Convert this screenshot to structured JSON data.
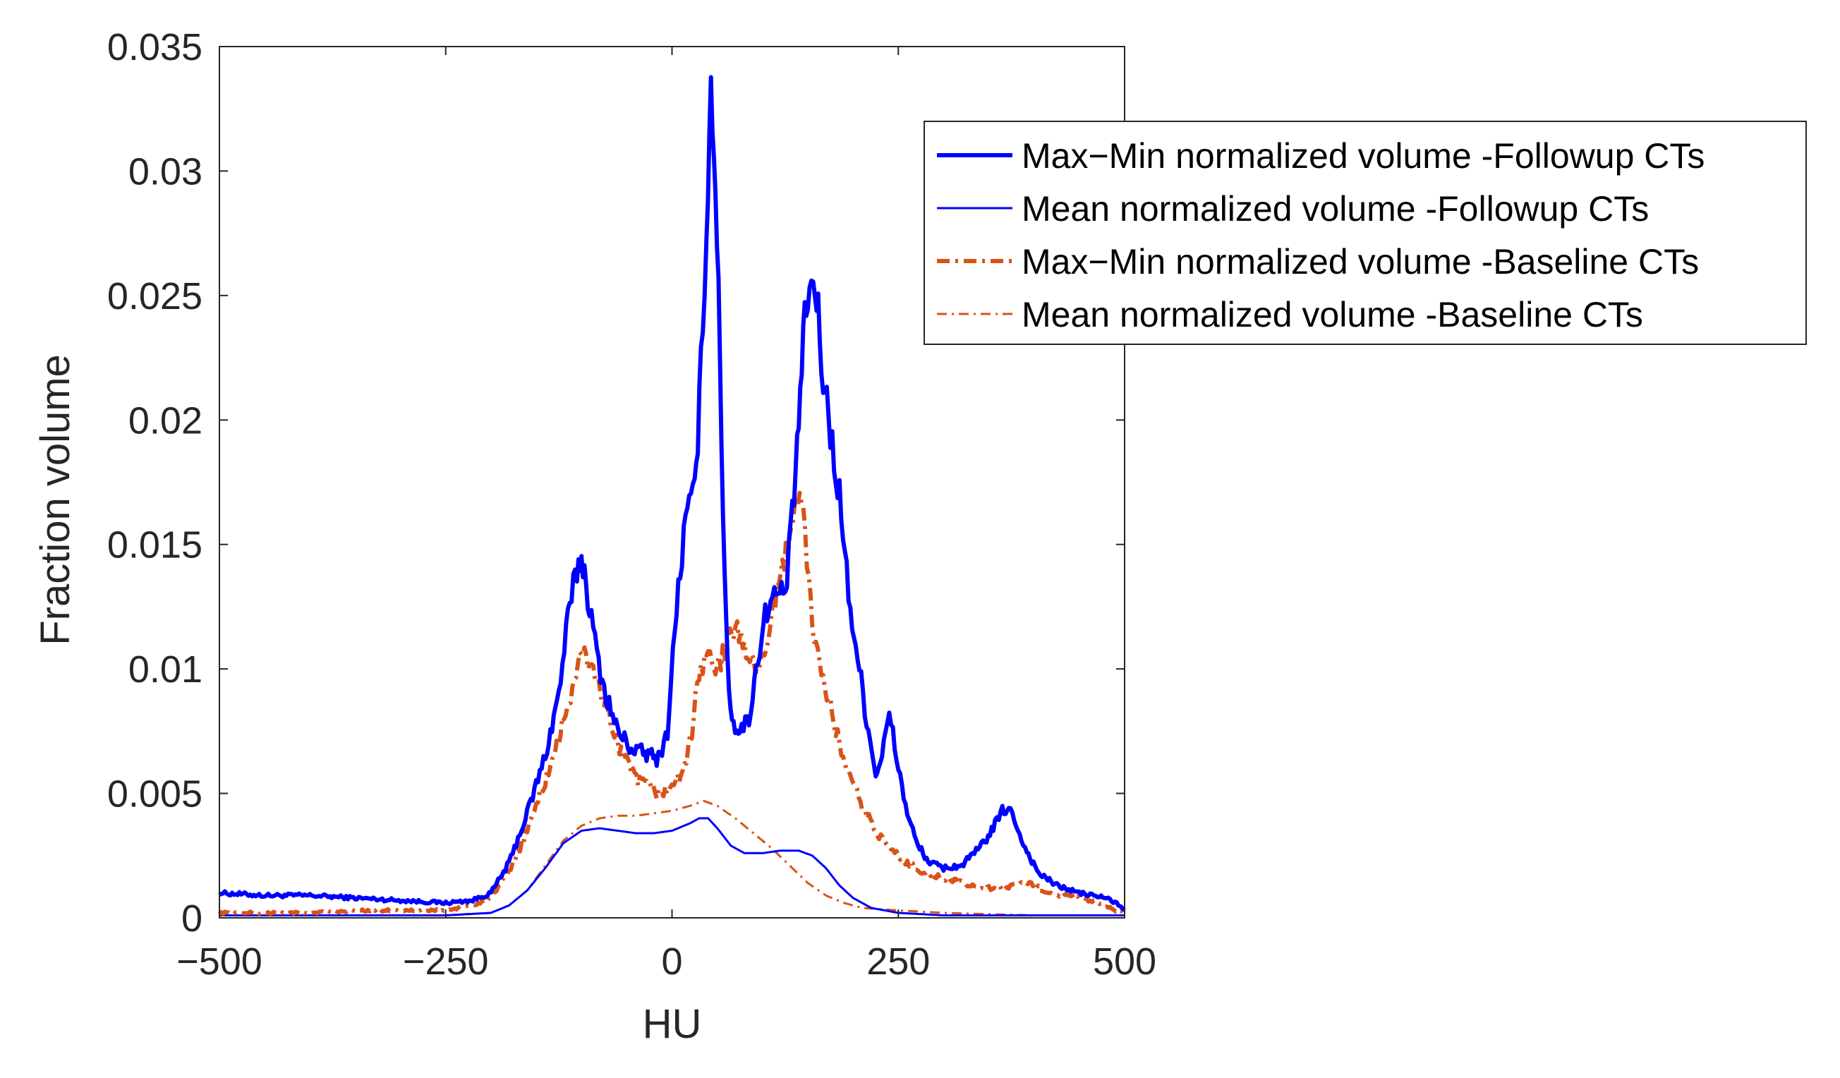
{
  "chart_data": {
    "type": "line",
    "title": "",
    "xlabel": "HU",
    "ylabel": "Fraction volume",
    "xlim": [
      -500,
      500
    ],
    "ylim": [
      0,
      0.035
    ],
    "grid": false,
    "legend_position": "top-right-outside",
    "x_ticks": [
      -500,
      -250,
      0,
      250,
      500
    ],
    "x_tick_labels": [
      "−500",
      "−250",
      "0",
      "250",
      "500"
    ],
    "y_ticks": [
      0,
      0.005,
      0.01,
      0.015,
      0.02,
      0.025,
      0.03,
      0.035
    ],
    "y_tick_labels": [
      "0",
      "0.005",
      "0.01",
      "0.015",
      "0.02",
      "0.025",
      "0.03",
      "0.035"
    ],
    "series": [
      {
        "name": "Max−Min normalized volume -Followup CTs",
        "color": "#0000ff",
        "style": "solid",
        "width": "thick",
        "points": [
          [
            -500,
            0.001
          ],
          [
            -450,
            0.0009
          ],
          [
            -400,
            0.0009
          ],
          [
            -350,
            0.0008
          ],
          [
            -300,
            0.0007
          ],
          [
            -250,
            0.0006
          ],
          [
            -220,
            0.0007
          ],
          [
            -200,
            0.001
          ],
          [
            -180,
            0.0022
          ],
          [
            -160,
            0.0042
          ],
          [
            -140,
            0.0065
          ],
          [
            -125,
            0.009
          ],
          [
            -115,
            0.012
          ],
          [
            -105,
            0.014
          ],
          [
            -100,
            0.0145
          ],
          [
            -95,
            0.0135
          ],
          [
            -85,
            0.011
          ],
          [
            -75,
            0.0092
          ],
          [
            -60,
            0.0075
          ],
          [
            -45,
            0.0068
          ],
          [
            -30,
            0.0066
          ],
          [
            -15,
            0.0064
          ],
          [
            -5,
            0.0075
          ],
          [
            5,
            0.0125
          ],
          [
            15,
            0.016
          ],
          [
            25,
            0.017
          ],
          [
            32,
            0.022
          ],
          [
            38,
            0.028
          ],
          [
            43,
            0.0333
          ],
          [
            48,
            0.03
          ],
          [
            53,
            0.022
          ],
          [
            58,
            0.014
          ],
          [
            63,
            0.009
          ],
          [
            68,
            0.0078
          ],
          [
            75,
            0.0075
          ],
          [
            85,
            0.008
          ],
          [
            95,
            0.0105
          ],
          [
            105,
            0.0125
          ],
          [
            115,
            0.013
          ],
          [
            125,
            0.013
          ],
          [
            133,
            0.016
          ],
          [
            140,
            0.02
          ],
          [
            145,
            0.023
          ],
          [
            150,
            0.025
          ],
          [
            158,
            0.0255
          ],
          [
            165,
            0.0225
          ],
          [
            175,
            0.0195
          ],
          [
            185,
            0.017
          ],
          [
            195,
            0.013
          ],
          [
            205,
            0.0105
          ],
          [
            215,
            0.008
          ],
          [
            225,
            0.0058
          ],
          [
            232,
            0.0065
          ],
          [
            240,
            0.0082
          ],
          [
            248,
            0.0065
          ],
          [
            258,
            0.0045
          ],
          [
            270,
            0.003
          ],
          [
            285,
            0.0022
          ],
          [
            300,
            0.002
          ],
          [
            320,
            0.0021
          ],
          [
            340,
            0.0028
          ],
          [
            355,
            0.0036
          ],
          [
            365,
            0.0043
          ],
          [
            372,
            0.0044
          ],
          [
            380,
            0.0038
          ],
          [
            390,
            0.0028
          ],
          [
            405,
            0.0018
          ],
          [
            425,
            0.0013
          ],
          [
            450,
            0.001
          ],
          [
            480,
            0.0008
          ],
          [
            495,
            0.0005
          ],
          [
            500,
            0.0003
          ]
        ]
      },
      {
        "name": "Mean normalized volume -Followup CTs",
        "color": "#0000ff",
        "style": "solid",
        "width": "thin",
        "points": [
          [
            -500,
            0.0001
          ],
          [
            -400,
            0.0001
          ],
          [
            -300,
            0.0001
          ],
          [
            -250,
            0.0001
          ],
          [
            -200,
            0.0002
          ],
          [
            -180,
            0.0005
          ],
          [
            -160,
            0.0011
          ],
          [
            -140,
            0.002
          ],
          [
            -120,
            0.003
          ],
          [
            -100,
            0.0035
          ],
          [
            -80,
            0.0036
          ],
          [
            -60,
            0.0035
          ],
          [
            -40,
            0.0034
          ],
          [
            -20,
            0.0034
          ],
          [
            0,
            0.0035
          ],
          [
            20,
            0.0038
          ],
          [
            30,
            0.004
          ],
          [
            40,
            0.004
          ],
          [
            50,
            0.0036
          ],
          [
            65,
            0.0029
          ],
          [
            80,
            0.0026
          ],
          [
            100,
            0.0026
          ],
          [
            120,
            0.0027
          ],
          [
            140,
            0.0027
          ],
          [
            155,
            0.0025
          ],
          [
            170,
            0.002
          ],
          [
            185,
            0.0013
          ],
          [
            200,
            0.0008
          ],
          [
            220,
            0.0004
          ],
          [
            250,
            0.0002
          ],
          [
            300,
            0.0001
          ],
          [
            400,
            0.0001
          ],
          [
            500,
            0.0001
          ]
        ]
      },
      {
        "name": "Max−Min normalized volume -Baseline CTs",
        "color": "#d95319",
        "style": "dashdot",
        "width": "thick",
        "points": [
          [
            -500,
            0.0002
          ],
          [
            -450,
            0.0002
          ],
          [
            -400,
            0.0002
          ],
          [
            -350,
            0.0003
          ],
          [
            -300,
            0.0003
          ],
          [
            -250,
            0.0003
          ],
          [
            -220,
            0.0005
          ],
          [
            -200,
            0.0008
          ],
          [
            -180,
            0.0018
          ],
          [
            -160,
            0.0035
          ],
          [
            -140,
            0.0055
          ],
          [
            -125,
            0.0072
          ],
          [
            -112,
            0.009
          ],
          [
            -102,
            0.0103
          ],
          [
            -95,
            0.0105
          ],
          [
            -85,
            0.0098
          ],
          [
            -75,
            0.0087
          ],
          [
            -60,
            0.007
          ],
          [
            -45,
            0.0058
          ],
          [
            -30,
            0.0053
          ],
          [
            -15,
            0.005
          ],
          [
            0,
            0.0052
          ],
          [
            10,
            0.0058
          ],
          [
            20,
            0.007
          ],
          [
            30,
            0.0098
          ],
          [
            40,
            0.0108
          ],
          [
            50,
            0.0098
          ],
          [
            60,
            0.011
          ],
          [
            70,
            0.0116
          ],
          [
            80,
            0.011
          ],
          [
            90,
            0.01
          ],
          [
            100,
            0.0105
          ],
          [
            110,
            0.012
          ],
          [
            120,
            0.0135
          ],
          [
            130,
            0.0155
          ],
          [
            137,
            0.0173
          ],
          [
            145,
            0.016
          ],
          [
            155,
            0.012
          ],
          [
            165,
            0.0095
          ],
          [
            175,
            0.0085
          ],
          [
            185,
            0.007
          ],
          [
            195,
            0.0057
          ],
          [
            210,
            0.0045
          ],
          [
            225,
            0.0035
          ],
          [
            240,
            0.0028
          ],
          [
            260,
            0.0022
          ],
          [
            280,
            0.0018
          ],
          [
            300,
            0.0016
          ],
          [
            320,
            0.0014
          ],
          [
            340,
            0.0012
          ],
          [
            360,
            0.0012
          ],
          [
            380,
            0.0013
          ],
          [
            395,
            0.0014
          ],
          [
            410,
            0.0011
          ],
          [
            430,
            0.0009
          ],
          [
            450,
            0.0008
          ],
          [
            470,
            0.0006
          ],
          [
            490,
            0.0003
          ],
          [
            500,
            0.0002
          ]
        ]
      },
      {
        "name": "Mean normalized volume -Baseline CTs",
        "color": "#d95319",
        "style": "dashdot",
        "width": "thin",
        "points": [
          [
            -500,
            0.0001
          ],
          [
            -400,
            0.0001
          ],
          [
            -300,
            0.0001
          ],
          [
            -250,
            0.0001
          ],
          [
            -200,
            0.0002
          ],
          [
            -180,
            0.0005
          ],
          [
            -160,
            0.0011
          ],
          [
            -140,
            0.0021
          ],
          [
            -120,
            0.0031
          ],
          [
            -100,
            0.0037
          ],
          [
            -80,
            0.004
          ],
          [
            -60,
            0.0041
          ],
          [
            -40,
            0.0041
          ],
          [
            -20,
            0.0042
          ],
          [
            0,
            0.0043
          ],
          [
            20,
            0.0045
          ],
          [
            35,
            0.0047
          ],
          [
            50,
            0.0045
          ],
          [
            70,
            0.004
          ],
          [
            90,
            0.0034
          ],
          [
            110,
            0.0028
          ],
          [
            130,
            0.0021
          ],
          [
            150,
            0.0014
          ],
          [
            170,
            0.0009
          ],
          [
            190,
            0.0006
          ],
          [
            210,
            0.0004
          ],
          [
            250,
            0.0003
          ],
          [
            300,
            0.0002
          ],
          [
            400,
            0.0001
          ],
          [
            500,
            0.0001
          ]
        ]
      }
    ]
  }
}
